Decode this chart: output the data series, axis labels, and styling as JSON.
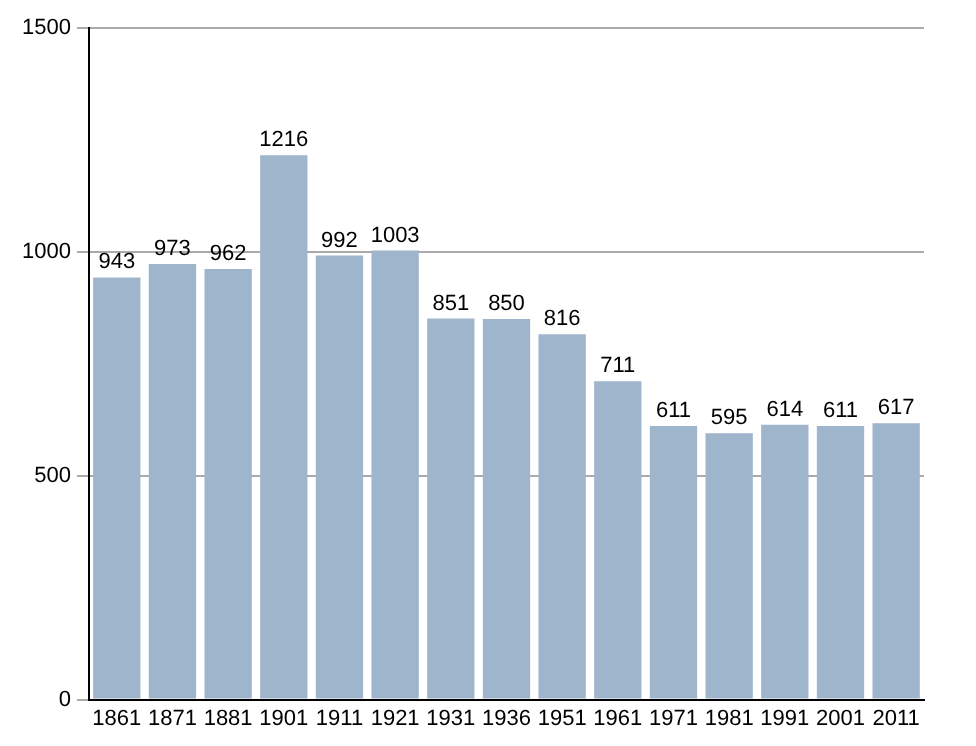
{
  "chart_data": {
    "type": "bar",
    "categories": [
      "1861",
      "1871",
      "1881",
      "1901",
      "1911",
      "1921",
      "1931",
      "1936",
      "1951",
      "1961",
      "1971",
      "1981",
      "1991",
      "2001",
      "2011"
    ],
    "values": [
      943,
      973,
      962,
      1216,
      992,
      1003,
      851,
      850,
      816,
      711,
      611,
      595,
      614,
      611,
      617
    ],
    "color": "#9fb5cc",
    "ylim": [
      0,
      1500
    ],
    "yticks": [
      0,
      500,
      1000,
      1500
    ],
    "grid": "y",
    "legend": false,
    "data_labels": true
  }
}
